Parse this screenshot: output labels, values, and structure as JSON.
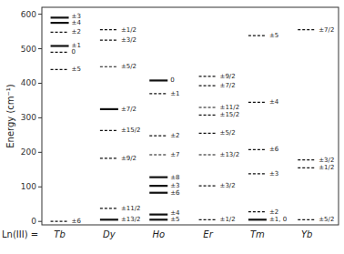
{
  "chart_data": {
    "type": "levels",
    "ylabel": "Energy (cm⁻¹)",
    "xlabel": "Ln(III) =",
    "ylim": [
      -10,
      620
    ],
    "yticks": [
      0,
      100,
      200,
      300,
      400,
      500,
      600
    ],
    "grid": false,
    "categories": [
      "Tb",
      "Dy",
      "Ho",
      "Er",
      "Tm",
      "Yb"
    ],
    "levels": [
      [
        {
          "value": 590,
          "label": "±3",
          "line_style": "solid"
        },
        {
          "value": 575,
          "label": "±4",
          "line_style": "solid"
        },
        {
          "value": 548,
          "label": "±2",
          "line_style": "dashed"
        },
        {
          "value": 508,
          "label": "±1",
          "line_style": "solid"
        },
        {
          "value": 490,
          "label": "0",
          "line_style": "dashed"
        },
        {
          "value": 440,
          "label": "±5",
          "line_style": "dashed"
        },
        {
          "value": 0,
          "label": "±6",
          "line_style": "dashed"
        }
      ],
      [
        {
          "value": 555,
          "label": "±1/2",
          "line_style": "dashed"
        },
        {
          "value": 525,
          "label": "±3/2",
          "line_style": "dashed"
        },
        {
          "value": 448,
          "label": "±5/2",
          "line_style": "dashed"
        },
        {
          "value": 325,
          "label": "±7/2",
          "line_style": "solid"
        },
        {
          "value": 263,
          "label": "±15/2",
          "line_style": "dashed"
        },
        {
          "value": 183,
          "label": "±9/2",
          "line_style": "dashed"
        },
        {
          "value": 38,
          "label": "±11/2",
          "line_style": "dashed"
        },
        {
          "value": 5,
          "label": "±13/2",
          "line_style": "solid"
        }
      ],
      [
        {
          "value": 408,
          "label": "0",
          "line_style": "solid"
        },
        {
          "value": 370,
          "label": "±1",
          "line_style": "dashed"
        },
        {
          "value": 248,
          "label": "±2",
          "line_style": "dashed"
        },
        {
          "value": 193,
          "label": "±7",
          "line_style": "dashed"
        },
        {
          "value": 128,
          "label": "±8",
          "line_style": "solid"
        },
        {
          "value": 103,
          "label": "±3",
          "line_style": "solid"
        },
        {
          "value": 83,
          "label": "±6",
          "line_style": "solid"
        },
        {
          "value": 20,
          "label": "±4",
          "line_style": "solid"
        },
        {
          "value": 5,
          "label": "±5",
          "line_style": "solid"
        }
      ],
      [
        {
          "value": 420,
          "label": "±9/2",
          "line_style": "dashed"
        },
        {
          "value": 393,
          "label": "±7/2",
          "line_style": "dashed"
        },
        {
          "value": 330,
          "label": "±11/2",
          "line_style": "dashed"
        },
        {
          "value": 308,
          "label": "±15/2",
          "line_style": "dashed"
        },
        {
          "value": 255,
          "label": "±5/2",
          "line_style": "dashed"
        },
        {
          "value": 193,
          "label": "±13/2",
          "line_style": "dashed"
        },
        {
          "value": 103,
          "label": "±3/2",
          "line_style": "dashed"
        },
        {
          "value": 5,
          "label": "±1/2",
          "line_style": "dashed"
        }
      ],
      [
        {
          "value": 538,
          "label": "±5",
          "line_style": "dashed"
        },
        {
          "value": 345,
          "label": "±4",
          "line_style": "dashed"
        },
        {
          "value": 208,
          "label": "±6",
          "line_style": "dashed"
        },
        {
          "value": 138,
          "label": "±3",
          "line_style": "dashed"
        },
        {
          "value": 28,
          "label": "±2",
          "line_style": "dashed"
        },
        {
          "value": 5,
          "label": "±1, 0",
          "line_style": "solid"
        }
      ],
      [
        {
          "value": 555,
          "label": "±7/2",
          "line_style": "dashed"
        },
        {
          "value": 178,
          "label": "±3/2",
          "line_style": "dashed"
        },
        {
          "value": 155,
          "label": "±1/2",
          "line_style": "dashed"
        },
        {
          "value": 5,
          "label": "±5/2",
          "line_style": "dashed"
        }
      ]
    ]
  }
}
